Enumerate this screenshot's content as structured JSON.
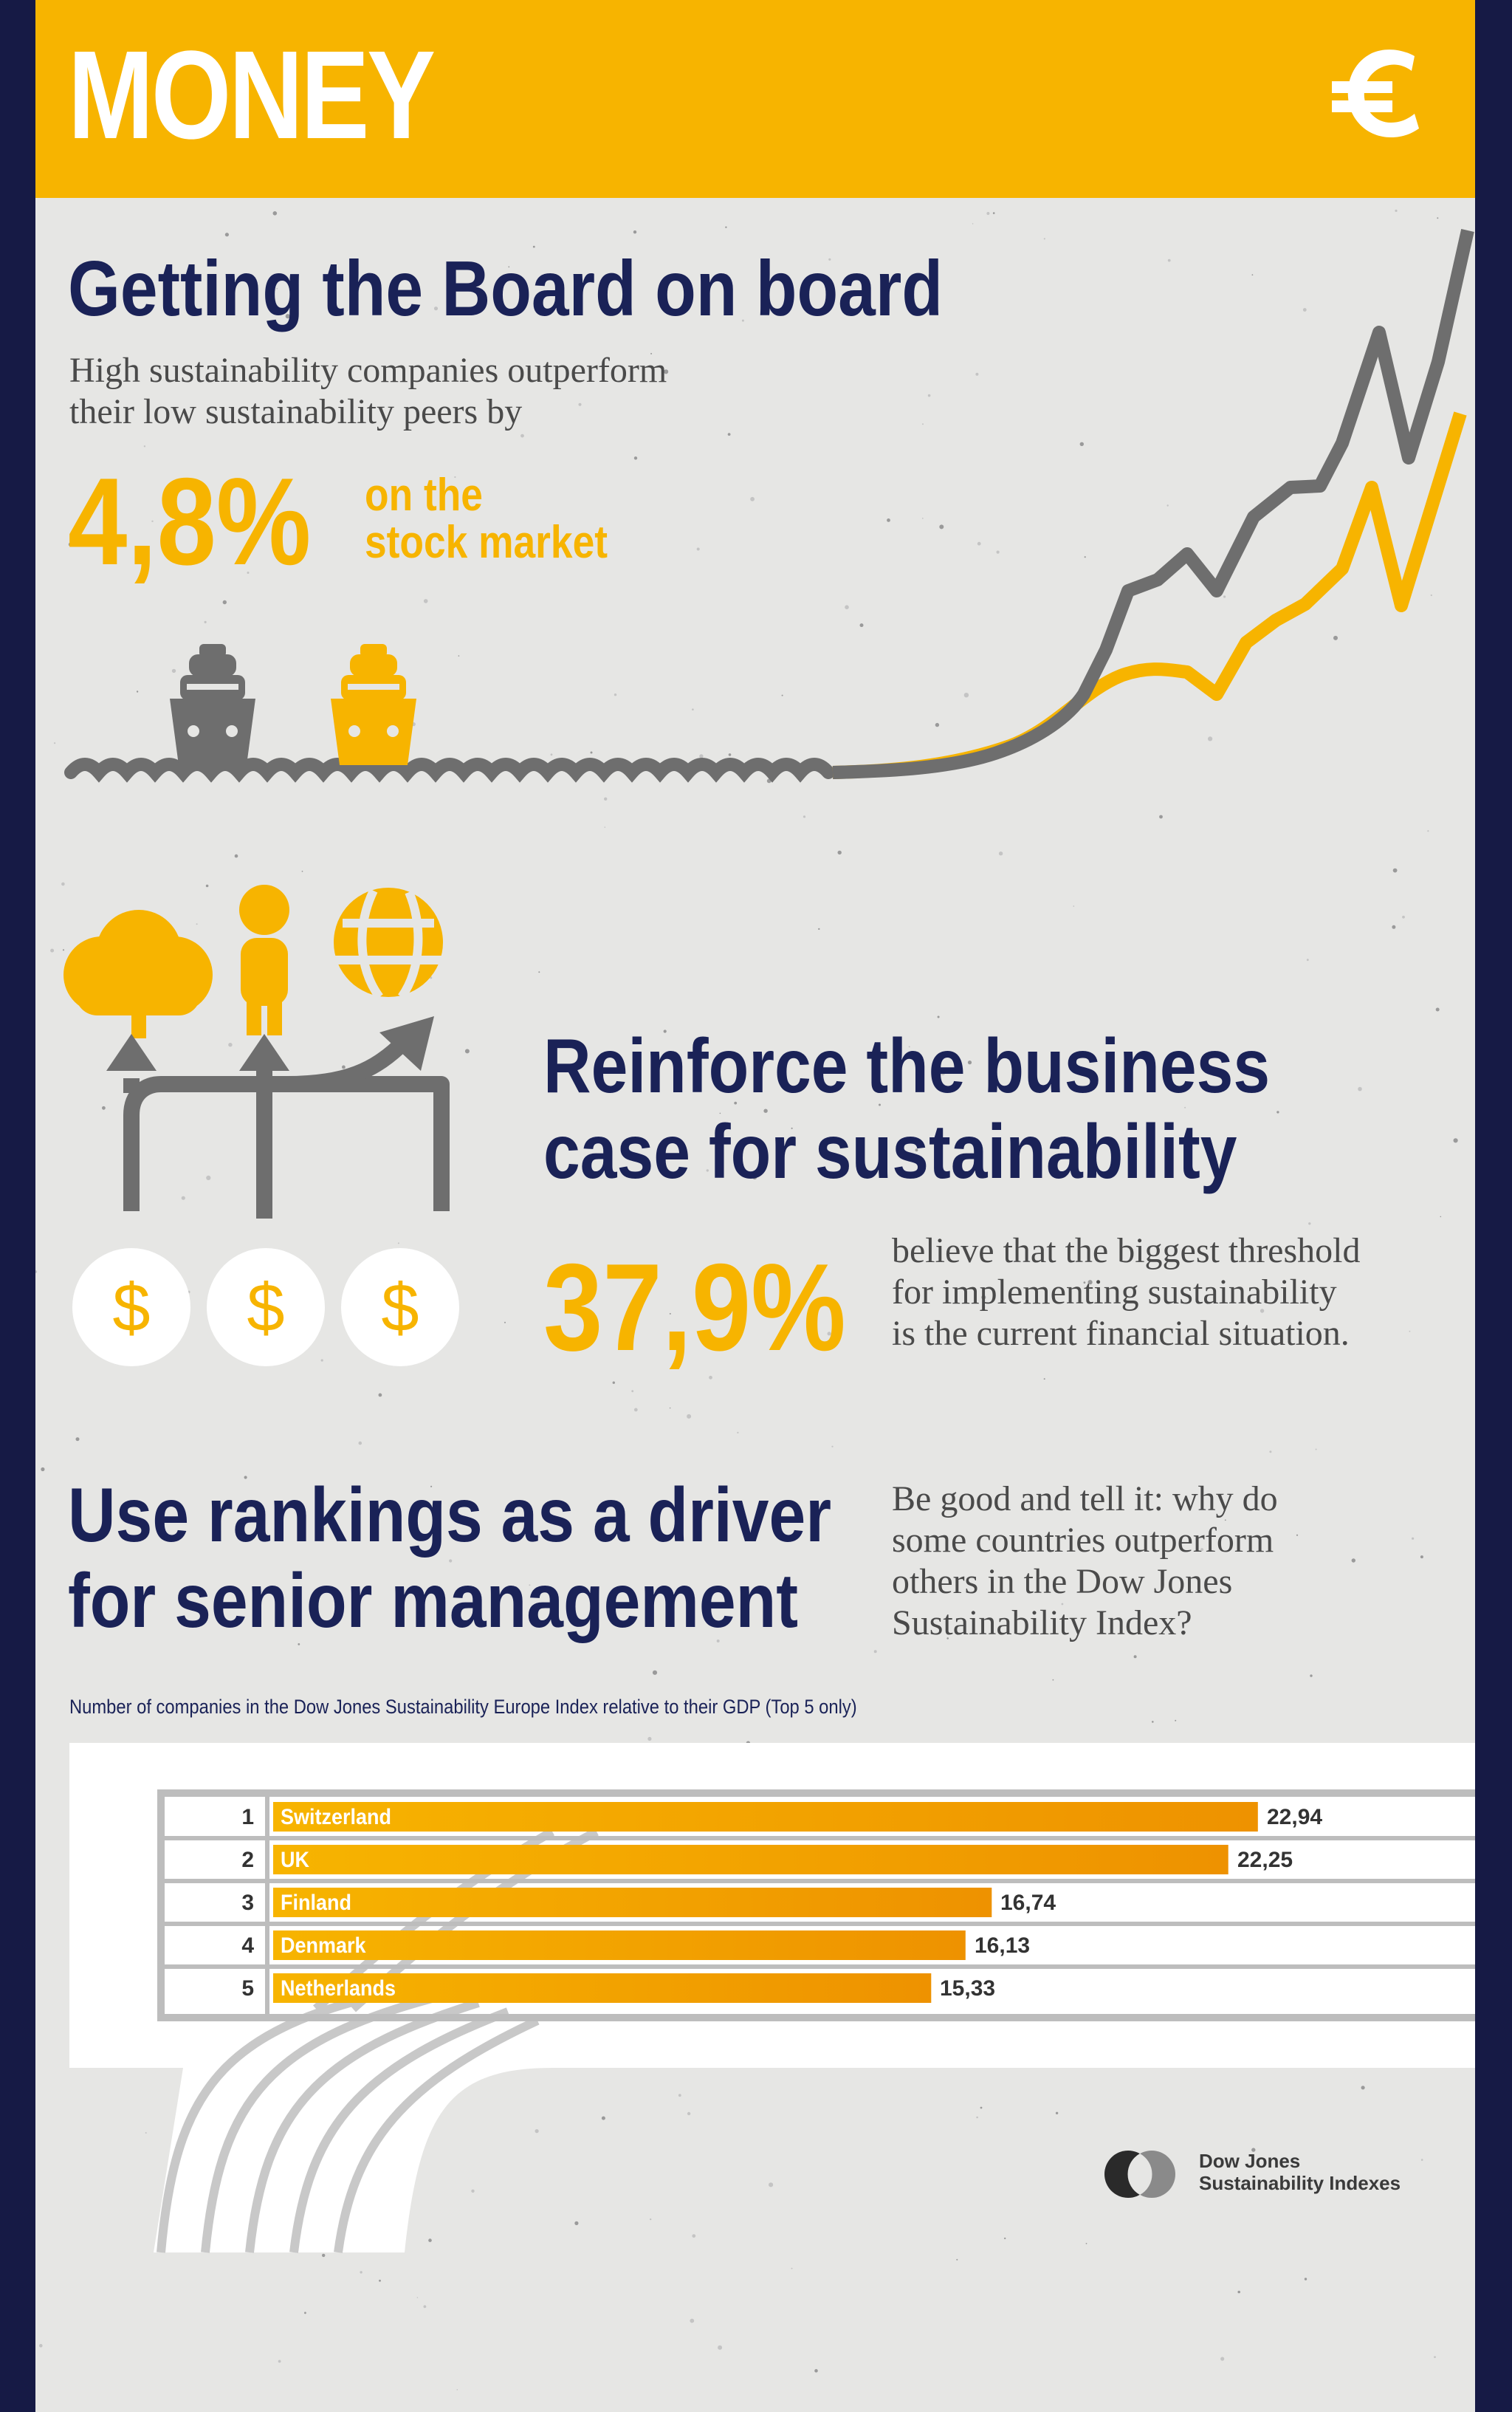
{
  "header": {
    "title": "MONEY",
    "icon": "euro-icon"
  },
  "section1": {
    "title": "Getting the Board on board",
    "text_line1": "High sustainability companies outperform",
    "text_line2": "their low sustainability peers by",
    "percent": "4,8%",
    "sub_line1": "on the",
    "sub_line2": "stock market"
  },
  "section2": {
    "title_line1": "Reinforce the business",
    "title_line2": "case for sustainability",
    "percent": "37,9%",
    "text_line1": "believe that the biggest threshold",
    "text_line2": "for implementing sustainability",
    "text_line3": "is the current financial situation.",
    "dollar_symbol": "$"
  },
  "section3": {
    "title_line1": "Use rankings as a driver",
    "title_line2": "for senior management",
    "text_line1": "Be good and tell it: why do",
    "text_line2": "some countries outperform",
    "text_line3": "others in the Dow Jones",
    "text_line4": "Sustainability Index?"
  },
  "colors": {
    "yellow": "#f7b400",
    "navy": "#1a2257",
    "grey": "#6e6e6e",
    "bar_end": "#ee9200"
  },
  "chart_data": {
    "type": "bar",
    "orientation": "horizontal",
    "title": "Number of companies in the Dow Jones Sustainability Europe Index relative to their GDP (Top 5 only)",
    "ranks": [
      "1",
      "2",
      "3",
      "4",
      "5"
    ],
    "categories": [
      "Switzerland",
      "UK",
      "Finland",
      "Denmark",
      "Netherlands"
    ],
    "values": [
      22.94,
      22.25,
      16.74,
      16.13,
      15.33
    ],
    "value_labels": [
      "22,94",
      "22,25",
      "16,74",
      "16,13",
      "15,33"
    ],
    "xlim": [
      0,
      28
    ]
  },
  "logo": {
    "line1": "Dow Jones",
    "line2": "Sustainability Indexes"
  }
}
